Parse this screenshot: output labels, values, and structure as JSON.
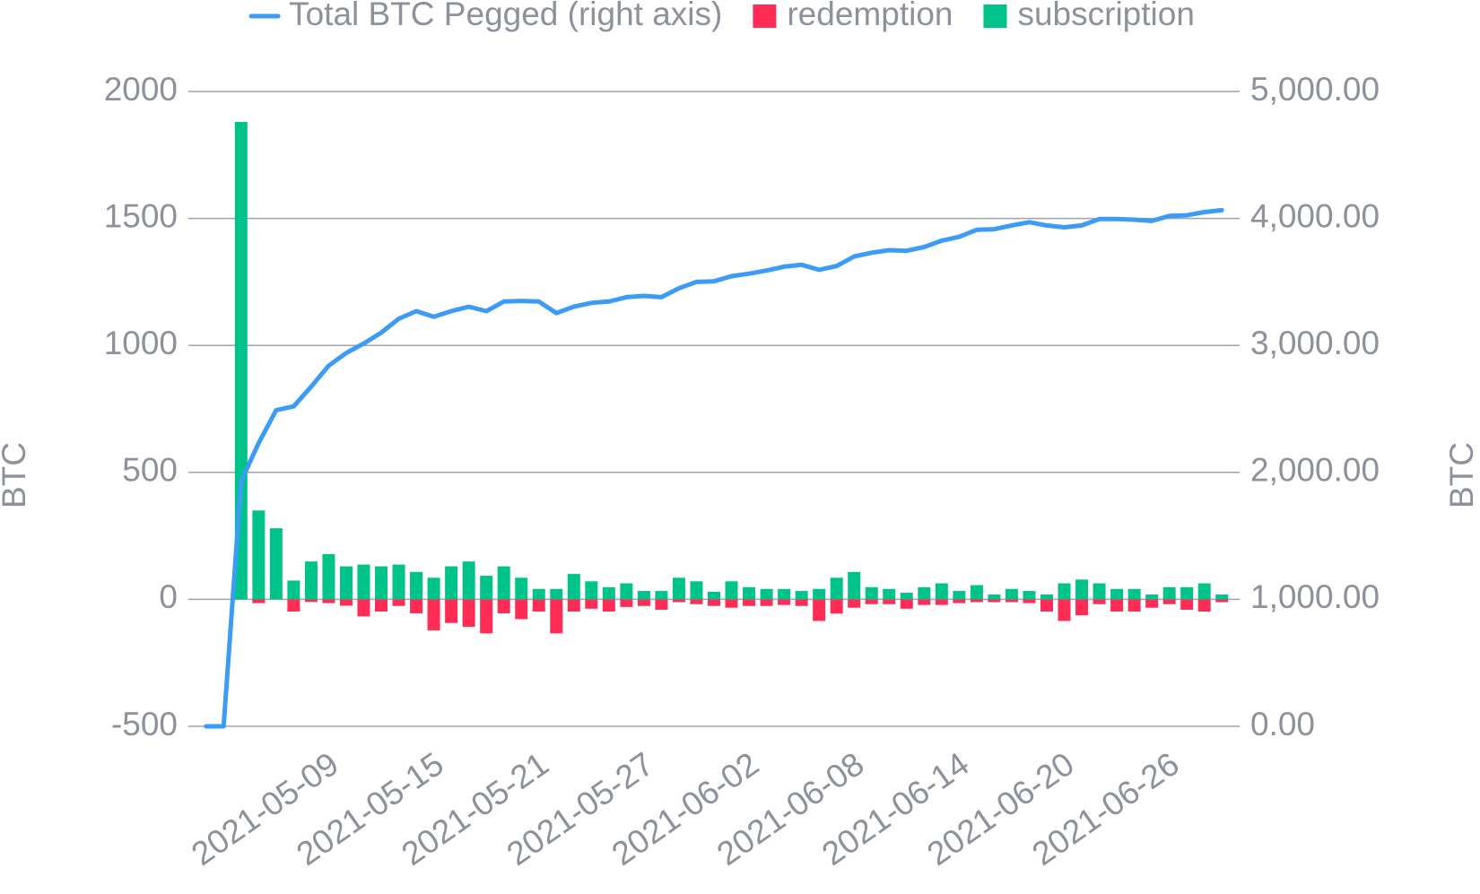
{
  "chart_data": {
    "type": "bar",
    "y_label": "BTC",
    "y2_label": "BTC",
    "categories": [
      null,
      null,
      null,
      null,
      null,
      null,
      null,
      "2021-05-09",
      null,
      null,
      null,
      null,
      null,
      "2021-05-15",
      null,
      null,
      null,
      null,
      null,
      "2021-05-21",
      null,
      null,
      null,
      null,
      null,
      "2021-05-27",
      null,
      null,
      null,
      null,
      null,
      "2021-06-02",
      null,
      null,
      null,
      null,
      null,
      "2021-06-08",
      null,
      null,
      null,
      null,
      null,
      "2021-06-14",
      null,
      null,
      null,
      null,
      null,
      "2021-06-20",
      null,
      null,
      null,
      null,
      null,
      "2021-06-26",
      null,
      null,
      null
    ],
    "ylim": [
      -500,
      2000
    ],
    "yticks": [
      -500,
      0,
      500,
      1000,
      1500,
      2000
    ],
    "y2lim": [
      0,
      5000
    ],
    "y2ticks": [
      {
        "value": 0,
        "label": "0.00"
      },
      {
        "value": 1000,
        "label": "1,000.00"
      },
      {
        "value": 2000,
        "label": "2,000.00"
      },
      {
        "value": 3000,
        "label": "3,000.00"
      },
      {
        "value": 4000,
        "label": "4,000.00"
      },
      {
        "value": 5000,
        "label": "5,000.00"
      }
    ],
    "grid": true,
    "legend": "top",
    "series": [
      {
        "name": "Total BTC Pegged (right axis)",
        "type": "line",
        "axis": "y2",
        "color": "#3b9bf5",
        "values": [
          0,
          0,
          1930,
          2230,
          2490,
          2520,
          2675,
          2840,
          2940,
          3015,
          3100,
          3210,
          3270,
          3225,
          3270,
          3305,
          3270,
          3345,
          3350,
          3345,
          3255,
          3305,
          3335,
          3345,
          3380,
          3390,
          3380,
          3450,
          3500,
          3505,
          3545,
          3565,
          3590,
          3620,
          3635,
          3595,
          3625,
          3700,
          3730,
          3750,
          3745,
          3775,
          3825,
          3855,
          3910,
          3915,
          3945,
          3970,
          3945,
          3930,
          3945,
          3995,
          3995,
          3990,
          3980,
          4020,
          4025,
          4050,
          4065
        ]
      },
      {
        "name": "redemption",
        "type": "bar",
        "color": "#ff2d55",
        "values": [
          0,
          0,
          0,
          -15,
          0,
          -48,
          -10,
          -15,
          -25,
          -67,
          -48,
          -26,
          -55,
          -122,
          -93,
          -108,
          -134,
          -55,
          -78,
          -48,
          -134,
          -48,
          -37,
          -48,
          -30,
          -26,
          -41,
          -11,
          -19,
          -26,
          -33,
          -26,
          -26,
          -22,
          -26,
          -85,
          -56,
          -33,
          -19,
          -19,
          -37,
          -22,
          -22,
          -15,
          -11,
          -11,
          -11,
          -15,
          -48,
          -85,
          -63,
          -19,
          -48,
          -48,
          -33,
          -19,
          -41,
          -48,
          -11
        ]
      },
      {
        "name": "subscription",
        "type": "bar",
        "color": "#00c389",
        "values": [
          0,
          0,
          1880,
          350,
          280,
          74,
          149,
          178,
          130,
          137,
          130,
          137,
          108,
          85,
          130,
          149,
          93,
          130,
          85,
          41,
          41,
          100,
          71,
          48,
          63,
          33,
          33,
          85,
          71,
          30,
          71,
          48,
          41,
          41,
          33,
          41,
          85,
          108,
          48,
          41,
          26,
          48,
          63,
          33,
          56,
          19,
          41,
          33,
          19,
          63,
          78,
          63,
          41,
          41,
          19,
          48,
          48,
          63,
          19
        ]
      }
    ]
  }
}
